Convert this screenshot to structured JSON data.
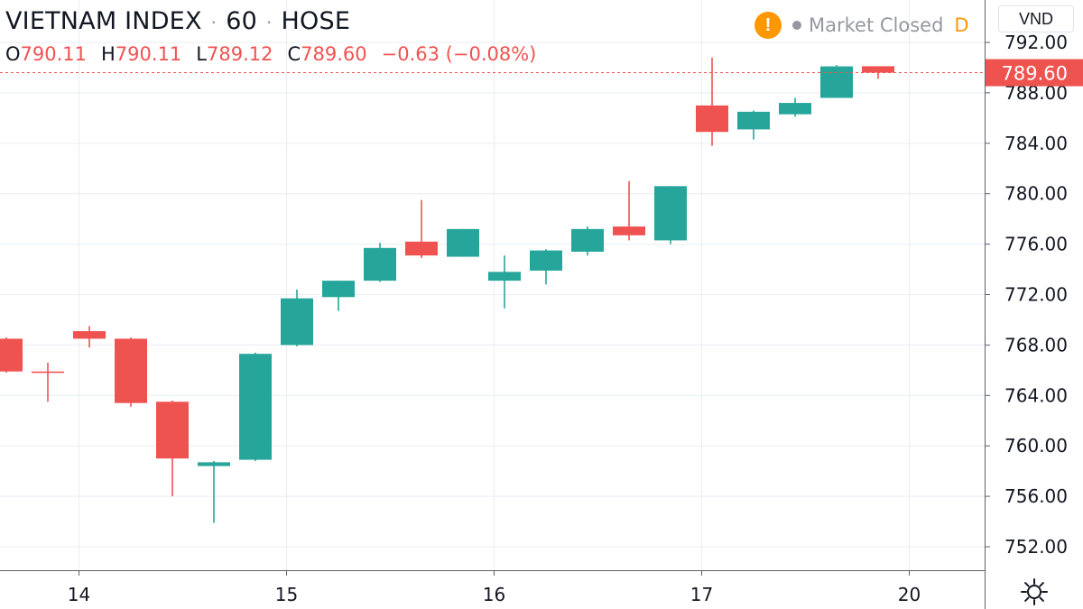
{
  "header": {
    "symbol": "VIETNAM INDEX",
    "separator": "·",
    "interval": "60",
    "exchange": "HOSE",
    "ohlc": {
      "o_label": "O",
      "o_value": "790.11",
      "h_label": "H",
      "h_value": "790.11",
      "l_label": "L",
      "l_value": "789.12",
      "c_label": "C",
      "c_value": "789.60",
      "change": "−0.63 (−0.08%)"
    },
    "status": {
      "warning_icon": "!",
      "text": "Market Closed",
      "badge": "D"
    }
  },
  "currency": "VND",
  "colors": {
    "up": "#26a69a",
    "down": "#ef5350",
    "grid": "#e8edf2",
    "axis_text": "#131722",
    "last_price_bg": "#ef5350",
    "warning": "#ff9800"
  },
  "chart_data": {
    "type": "candlestick",
    "ylim": [
      749.5,
      793.3
    ],
    "y_ticks": [
      "792.00",
      "788.00",
      "784.00",
      "780.00",
      "776.00",
      "772.00",
      "768.00",
      "764.00",
      "760.00",
      "756.00",
      "752.00"
    ],
    "x_ticks": [
      "14",
      "15",
      "16",
      "17",
      "20"
    ],
    "last_price": "789.60",
    "candles": [
      {
        "o": 768.5,
        "h": 768.6,
        "l": 765.8,
        "c": 765.9
      },
      {
        "o": 765.9,
        "h": 766.6,
        "l": 763.5,
        "c": 765.8
      },
      {
        "o": 769.1,
        "h": 769.5,
        "l": 767.8,
        "c": 768.5
      },
      {
        "o": 768.5,
        "h": 768.6,
        "l": 763.1,
        "c": 763.4
      },
      {
        "o": 763.5,
        "h": 763.6,
        "l": 756.0,
        "c": 759.0
      },
      {
        "o": 758.4,
        "h": 758.8,
        "l": 753.9,
        "c": 758.7
      },
      {
        "o": 758.9,
        "h": 767.4,
        "l": 758.8,
        "c": 767.3
      },
      {
        "o": 768.0,
        "h": 772.4,
        "l": 767.9,
        "c": 771.7
      },
      {
        "o": 771.8,
        "h": 773.1,
        "l": 770.7,
        "c": 773.1
      },
      {
        "o": 773.1,
        "h": 776.1,
        "l": 773.0,
        "c": 775.7
      },
      {
        "o": 776.2,
        "h": 779.5,
        "l": 774.9,
        "c": 775.1
      },
      {
        "o": 775.0,
        "h": 777.2,
        "l": 775.0,
        "c": 777.2
      },
      {
        "o": 773.1,
        "h": 775.1,
        "l": 770.9,
        "c": 773.8
      },
      {
        "o": 773.9,
        "h": 775.6,
        "l": 772.8,
        "c": 775.5
      },
      {
        "o": 775.4,
        "h": 777.4,
        "l": 775.1,
        "c": 777.2
      },
      {
        "o": 777.4,
        "h": 781.0,
        "l": 776.3,
        "c": 776.7
      },
      {
        "o": 776.3,
        "h": 780.6,
        "l": 776.0,
        "c": 780.6
      },
      {
        "o": 787.0,
        "h": 790.8,
        "l": 783.8,
        "c": 784.9
      },
      {
        "o": 785.1,
        "h": 786.6,
        "l": 784.3,
        "c": 786.5
      },
      {
        "o": 786.3,
        "h": 787.6,
        "l": 786.1,
        "c": 787.2
      },
      {
        "o": 787.6,
        "h": 790.2,
        "l": 787.6,
        "c": 790.1
      },
      {
        "o": 790.11,
        "h": 790.11,
        "l": 789.12,
        "c": 789.6
      }
    ]
  }
}
